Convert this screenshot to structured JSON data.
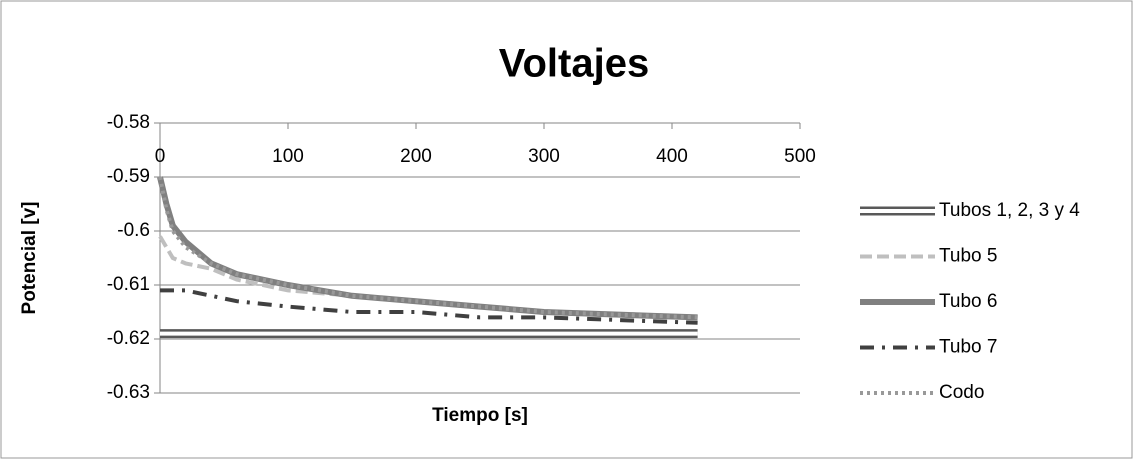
{
  "chart_data": {
    "type": "line",
    "title": "Voltajes",
    "x_label": "Tiempo [s]",
    "y_label": "Potencial [v]",
    "xlim": [
      0,
      500
    ],
    "xticks": [
      0,
      100,
      200,
      300,
      400,
      500
    ],
    "ylim": [
      -0.63,
      -0.58
    ],
    "yticks": [
      -0.63,
      -0.62,
      -0.61,
      -0.6,
      -0.59,
      -0.58
    ],
    "grid": true,
    "legend": "right",
    "series": [
      {
        "name": "Tubos 1, 2, 3 y 4",
        "color": "#595959",
        "style": "double",
        "x": [
          0,
          420
        ],
        "values": [
          -0.619,
          -0.619
        ]
      },
      {
        "name": "Tubo 5",
        "color": "#bfbfbf",
        "style": "dashed",
        "x": [
          0,
          5,
          10,
          20,
          40,
          60,
          100,
          150,
          200,
          300,
          420
        ],
        "values": [
          -0.601,
          -0.603,
          -0.605,
          -0.606,
          -0.607,
          -0.609,
          -0.611,
          -0.612,
          -0.613,
          -0.615,
          -0.616
        ]
      },
      {
        "name": "Tubo 6",
        "color": "#808080",
        "style": "solid",
        "x": [
          0,
          5,
          10,
          20,
          40,
          60,
          100,
          150,
          200,
          250,
          300,
          420
        ],
        "values": [
          -0.59,
          -0.595,
          -0.599,
          -0.602,
          -0.606,
          -0.608,
          -0.61,
          -0.612,
          -0.613,
          -0.614,
          -0.615,
          -0.616
        ]
      },
      {
        "name": "Tubo 7",
        "color": "#404040",
        "style": "dash-dot",
        "x": [
          0,
          20,
          40,
          60,
          100,
          150,
          200,
          250,
          300,
          420
        ],
        "values": [
          -0.611,
          -0.611,
          -0.612,
          -0.613,
          -0.614,
          -0.615,
          -0.615,
          -0.616,
          -0.616,
          -0.617
        ]
      },
      {
        "name": "Codo",
        "color": "#999999",
        "style": "dotted",
        "x": [
          0,
          5,
          10,
          20,
          40,
          60,
          100,
          150,
          200,
          300,
          420
        ],
        "values": [
          -0.59,
          -0.596,
          -0.6,
          -0.603,
          -0.606,
          -0.608,
          -0.61,
          -0.612,
          -0.613,
          -0.615,
          -0.616
        ]
      }
    ]
  }
}
